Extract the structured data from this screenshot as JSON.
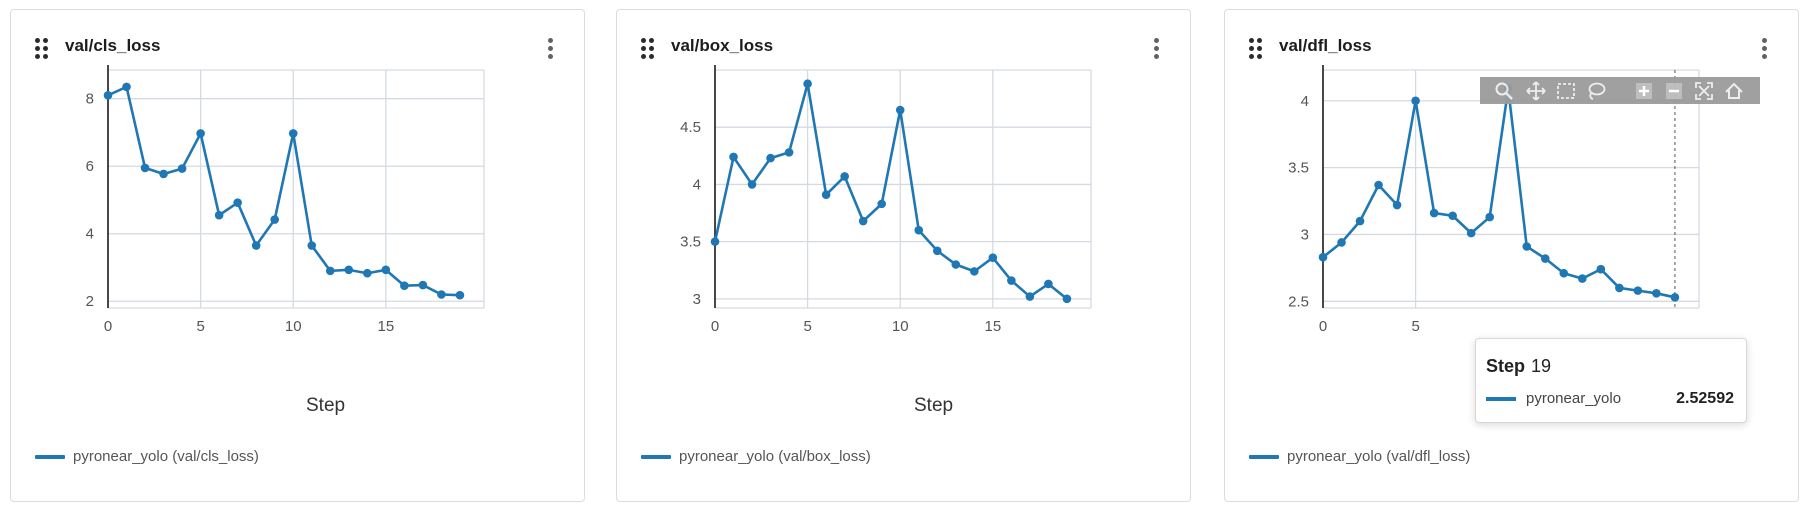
{
  "panels": [
    {
      "title": "val/cls_loss",
      "xlabel": "Step",
      "legend": "pyronear_yolo (val/cls_loss)"
    },
    {
      "title": "val/box_loss",
      "xlabel": "Step",
      "legend": "pyronear_yolo (val/box_loss)"
    },
    {
      "title": "val/dfl_loss",
      "xlabel": "",
      "legend": "pyronear_yolo (val/dfl_loss)"
    }
  ],
  "tooltip": {
    "step_label": "Step",
    "step_value": "19",
    "series": "pyronear_yolo",
    "value": "2.52592"
  },
  "modebar": {
    "icons": [
      "zoom-icon",
      "pan-icon",
      "box-select-icon",
      "lasso-select-icon",
      "zoom-in-icon",
      "zoom-out-icon",
      "autoscale-icon",
      "reset-axes-icon"
    ]
  },
  "colors": {
    "series": "#1f77b4",
    "grid": "#d5dae2",
    "axis": "#1a1a1a"
  },
  "chart_data": [
    {
      "type": "line",
      "title": "val/cls_loss",
      "xlabel": "Step",
      "x": [
        0,
        1,
        2,
        3,
        4,
        5,
        6,
        7,
        8,
        9,
        10,
        11,
        12,
        13,
        14,
        15,
        16,
        17,
        18,
        19
      ],
      "series": [
        {
          "name": "pyronear_yolo (val/cls_loss)",
          "values": [
            8.1,
            8.35,
            5.95,
            5.77,
            5.93,
            6.97,
            4.55,
            4.92,
            3.65,
            4.42,
            6.97,
            3.65,
            2.9,
            2.93,
            2.83,
            2.93,
            2.46,
            2.48,
            2.2,
            2.18
          ]
        }
      ],
      "xticks": [
        "0",
        "5",
        "10",
        "15"
      ],
      "xtick_values": [
        0,
        5,
        10,
        15
      ],
      "yticks": [
        "2",
        "4",
        "6",
        "8"
      ],
      "ytick_values": [
        2,
        4,
        6,
        8
      ],
      "xlim": [
        0,
        20.3
      ],
      "ylim": [
        1.8,
        8.85
      ],
      "grid": true,
      "legend_position": "bottom-left"
    },
    {
      "type": "line",
      "title": "val/box_loss",
      "xlabel": "Step",
      "x": [
        0,
        1,
        2,
        3,
        4,
        5,
        6,
        7,
        8,
        9,
        10,
        11,
        12,
        13,
        14,
        15,
        16,
        17,
        18,
        19
      ],
      "series": [
        {
          "name": "pyronear_yolo (val/box_loss)",
          "values": [
            3.5,
            4.24,
            4.0,
            4.23,
            4.28,
            4.88,
            3.91,
            4.07,
            3.68,
            3.83,
            4.65,
            3.6,
            3.42,
            3.3,
            3.24,
            3.36,
            3.16,
            3.02,
            3.13,
            3.0
          ]
        }
      ],
      "xticks": [
        "0",
        "5",
        "10",
        "15"
      ],
      "xtick_values": [
        0,
        5,
        10,
        15
      ],
      "yticks": [
        "3",
        "3.5",
        "4",
        "4.5"
      ],
      "ytick_values": [
        3,
        3.5,
        4,
        4.5
      ],
      "xlim": [
        0,
        20.3
      ],
      "ylim": [
        2.92,
        5.0
      ],
      "grid": true,
      "legend_position": "bottom-left"
    },
    {
      "type": "line",
      "title": "val/dfl_loss",
      "xlabel": "",
      "x": [
        0,
        1,
        2,
        3,
        4,
        5,
        6,
        7,
        8,
        9,
        10,
        11,
        12,
        13,
        14,
        15,
        16,
        17,
        18,
        19
      ],
      "series": [
        {
          "name": "pyronear_yolo (val/dfl_loss)",
          "values": [
            2.83,
            2.94,
            3.1,
            3.37,
            3.22,
            4.0,
            3.16,
            3.14,
            3.01,
            3.13,
            4.09,
            2.91,
            2.82,
            2.71,
            2.67,
            2.74,
            2.6,
            2.58,
            2.56,
            2.53
          ]
        }
      ],
      "xticks": [
        "0",
        "5"
      ],
      "xtick_values": [
        0,
        5
      ],
      "yticks": [
        "2.5",
        "3",
        "3.5",
        "4"
      ],
      "ytick_values": [
        2.5,
        3,
        3.5,
        4
      ],
      "xlim": [
        0,
        20.3
      ],
      "ylim": [
        2.45,
        4.23
      ],
      "grid": true,
      "legend_position": "bottom-left"
    }
  ]
}
